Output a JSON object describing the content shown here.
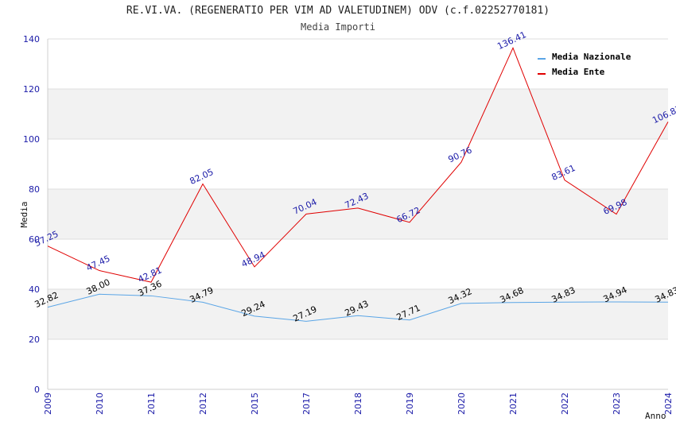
{
  "chart_data": {
    "type": "line",
    "title": "RE.VI.VA. (REGENERATIO PER VIM AD VALETUDINEM) ODV (c.f.02252770181)",
    "subtitle": "Media Importi",
    "xlabel": "Anno",
    "ylabel": "Media",
    "ylim": [
      0,
      140
    ],
    "yticks": [
      0,
      20,
      40,
      60,
      80,
      100,
      120,
      140
    ],
    "categories": [
      "2009",
      "2010",
      "2011",
      "2012",
      "2015",
      "2017",
      "2018",
      "2019",
      "2020",
      "2021",
      "2022",
      "2023",
      "2024"
    ],
    "series": [
      {
        "name": "Media Nazionale",
        "color": "#5aa5e6",
        "label_color": "#000000",
        "values": [
          32.82,
          38.0,
          37.36,
          34.79,
          29.24,
          27.19,
          29.43,
          27.71,
          34.32,
          34.68,
          34.83,
          34.94,
          34.83
        ]
      },
      {
        "name": "Media Ente",
        "color": "#e00000",
        "label_color": "#1a1aa8",
        "values": [
          57.25,
          47.45,
          42.81,
          82.05,
          48.94,
          70.04,
          72.43,
          66.72,
          90.76,
          136.41,
          83.61,
          69.98,
          106.87
        ]
      }
    ],
    "legend_position": "top-right",
    "grid": true,
    "band_fill": "#f2f2f2"
  }
}
